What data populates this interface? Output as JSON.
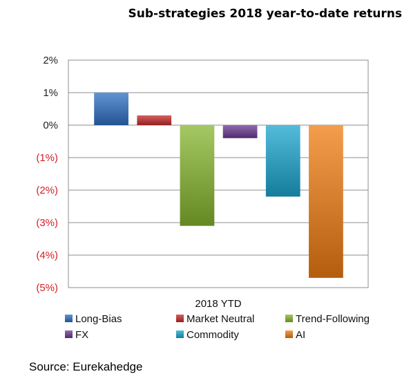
{
  "chart_data": {
    "type": "bar",
    "title": "Sub-strategies 2018 year-to-date returns",
    "categories": [
      "2018 YTD"
    ],
    "series": [
      {
        "name": "Long-Bias",
        "values": [
          1.0
        ],
        "color": "#2e6fc4"
      },
      {
        "name": "Market Neutral",
        "values": [
          0.3
        ],
        "color": "#c62a2a"
      },
      {
        "name": "Trend-Following",
        "values": [
          -3.1
        ],
        "color": "#86b52f"
      },
      {
        "name": "FX",
        "values": [
          -0.4
        ],
        "color": "#6a3a93"
      },
      {
        "name": "Commodity",
        "values": [
          -2.2
        ],
        "color": "#1aa6cf"
      },
      {
        "name": "AI",
        "values": [
          -4.7
        ],
        "color": "#f07c12"
      }
    ],
    "yticks": [
      {
        "value": 2,
        "label": "2%"
      },
      {
        "value": 1,
        "label": "1%"
      },
      {
        "value": 0,
        "label": "0%"
      },
      {
        "value": -1,
        "label": "(1%)"
      },
      {
        "value": -2,
        "label": "(2%)"
      },
      {
        "value": -3,
        "label": "(3%)"
      },
      {
        "value": -4,
        "label": "(4%)"
      },
      {
        "value": -5,
        "label": "(5%)"
      }
    ],
    "ylim": [
      -5,
      2
    ],
    "grid": true,
    "legend_position": "bottom",
    "source": "Source: Eurekahedge"
  }
}
